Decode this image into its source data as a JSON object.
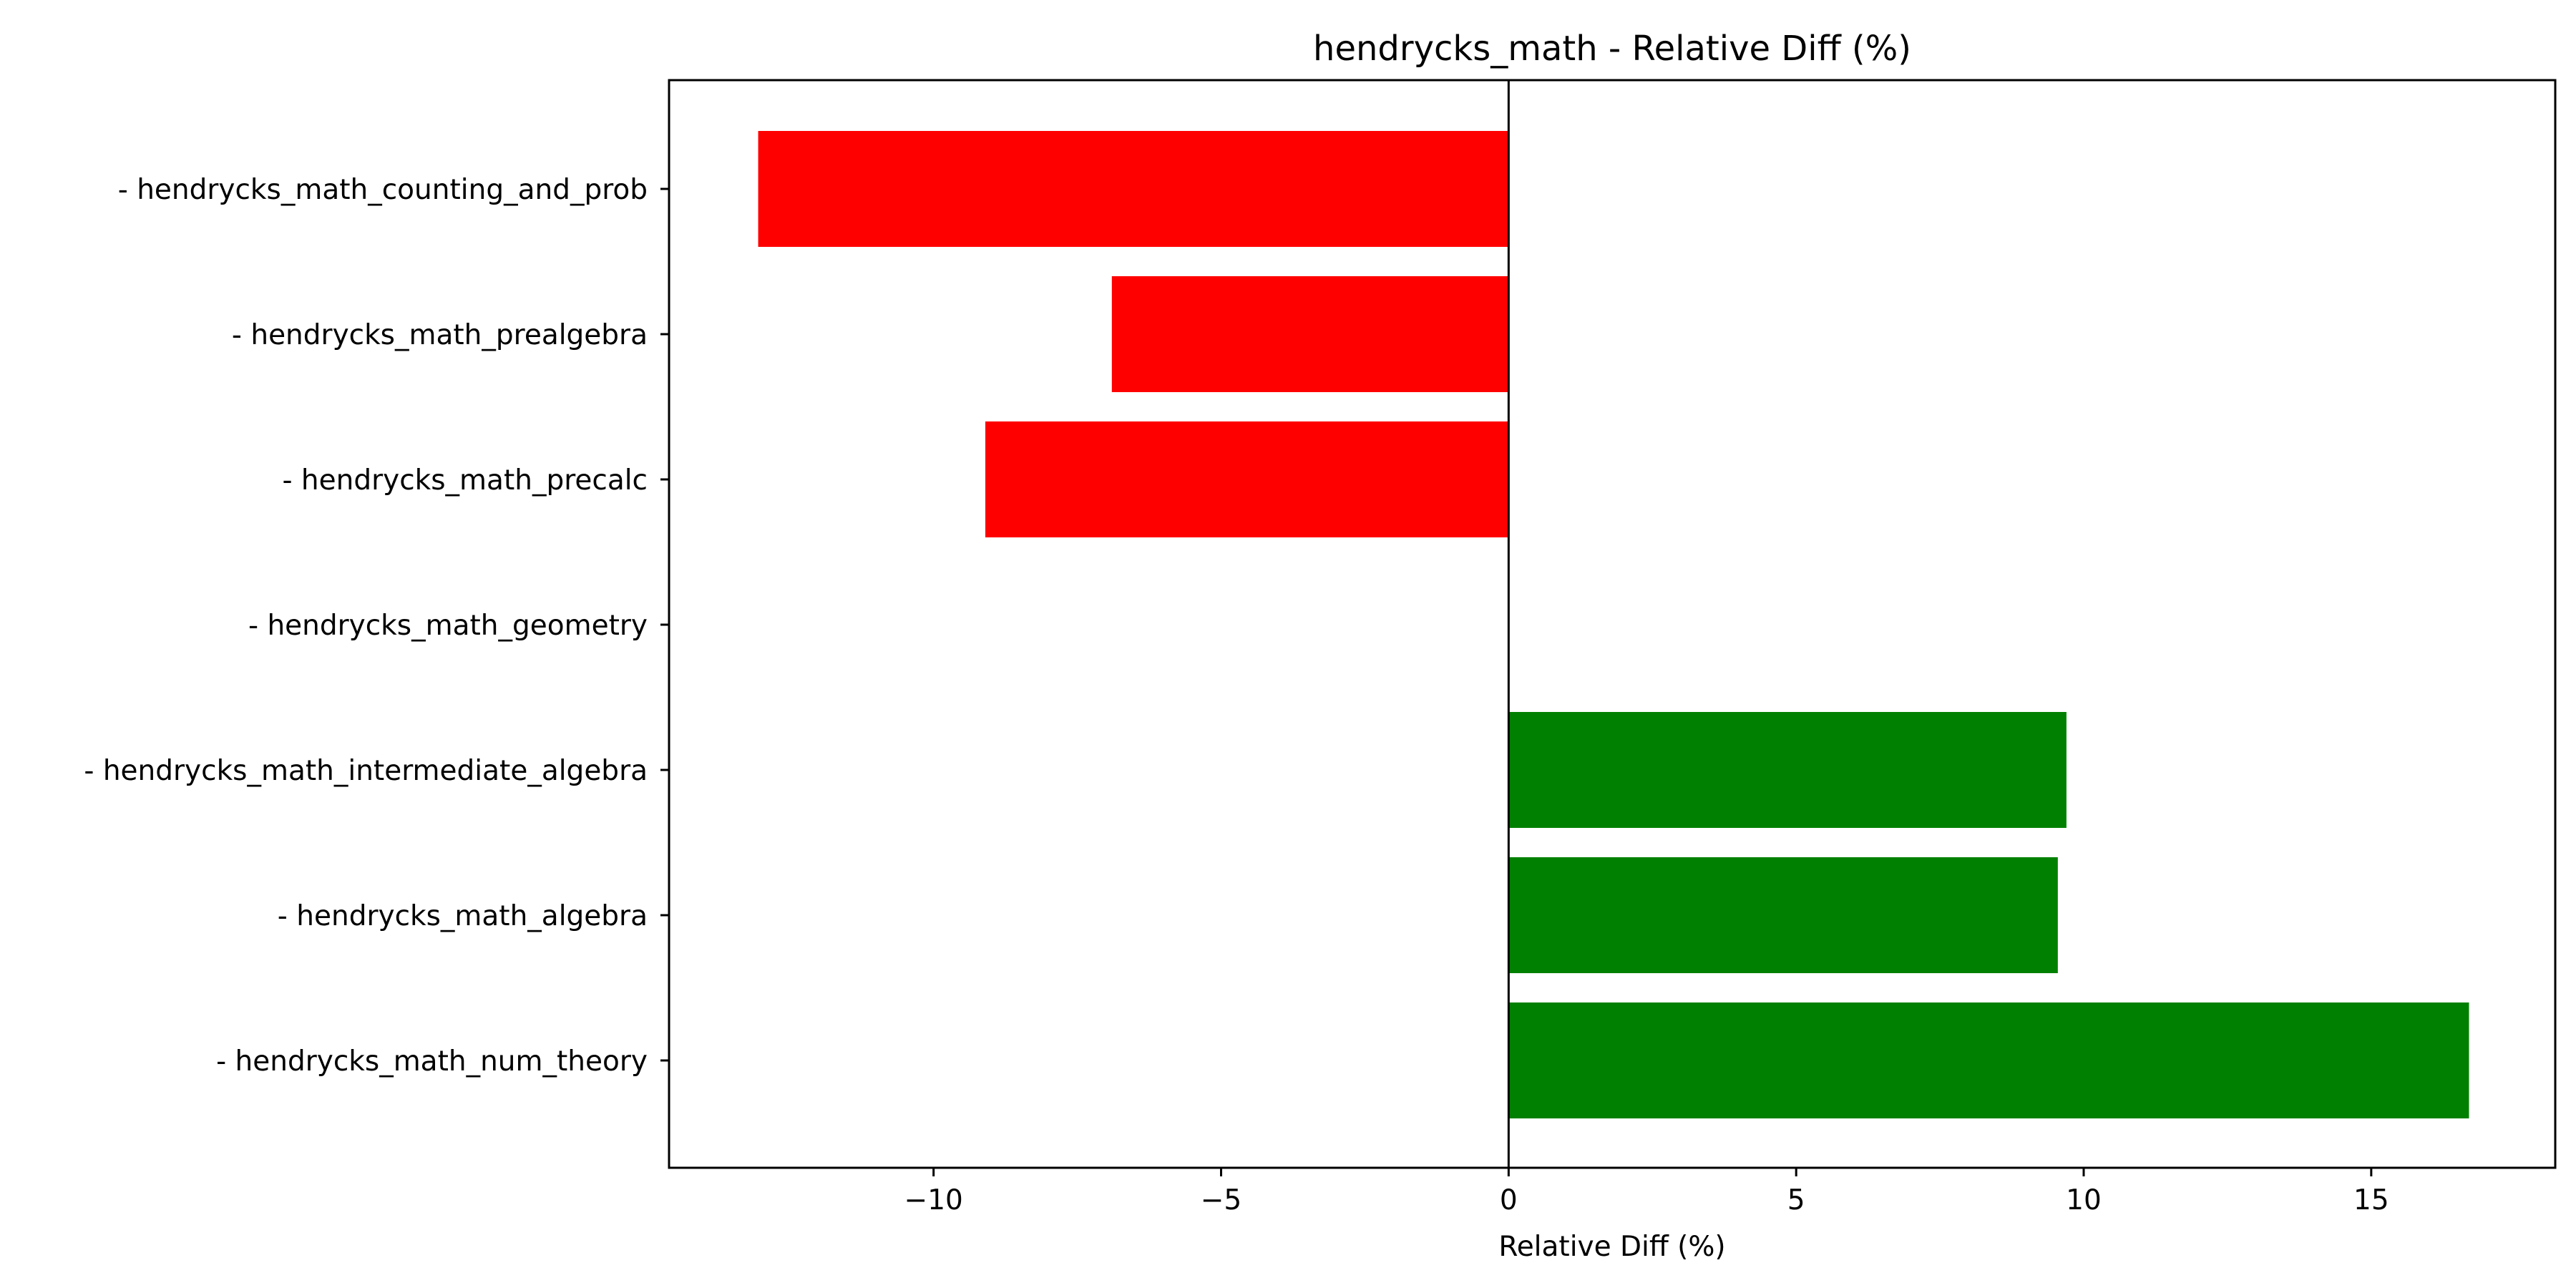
{
  "chart_data": {
    "type": "bar",
    "orientation": "horizontal",
    "title": "hendrycks_math - Relative Diff (%)",
    "xlabel": "Relative Diff (%)",
    "ylabel": "",
    "categories": [
      "- hendrycks_math_counting_and_prob",
      "- hendrycks_math_prealgebra",
      "- hendrycks_math_precalc",
      "- hendrycks_math_geometry",
      "- hendrycks_math_intermediate_algebra",
      "- hendrycks_math_algebra",
      "- hendrycks_math_num_theory"
    ],
    "values": [
      -13.05,
      -6.9,
      -9.1,
      0.0,
      9.7,
      9.55,
      16.7
    ],
    "xlim": [
      -14.6,
      18.2
    ],
    "xticks": [
      -10,
      -5,
      0,
      5,
      10,
      15
    ],
    "xtick_labels": [
      "−10",
      "−5",
      "0",
      "5",
      "10",
      "15"
    ],
    "grid": false,
    "legend": "none",
    "colors": {
      "positive": "#008000",
      "negative": "#ff0000",
      "zero_line": "#000000"
    }
  }
}
